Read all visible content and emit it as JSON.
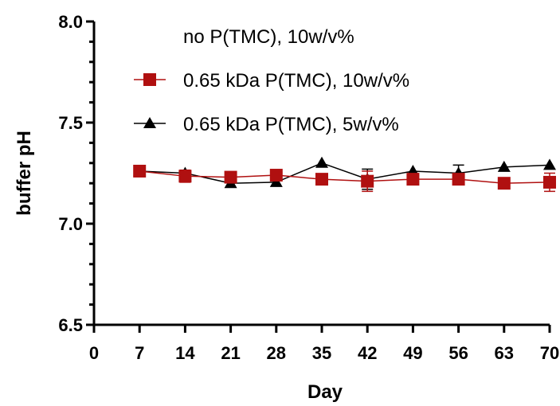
{
  "chart_data": {
    "type": "line",
    "xlabel": "Day",
    "ylabel": "buffer pH",
    "xlim": [
      0,
      70
    ],
    "ylim": [
      6.5,
      8.0
    ],
    "x_ticks": [
      "0",
      "7",
      "14",
      "21",
      "28",
      "35",
      "42",
      "49",
      "56",
      "63",
      "70"
    ],
    "y_ticks": [
      "6.5",
      "7.0",
      "7.5",
      "8.0"
    ],
    "grid": false,
    "legend_position": "top",
    "series": [
      {
        "name": "no P(TMC), 10w/v%",
        "marker": "none",
        "color": "#000000",
        "x": [],
        "y": []
      },
      {
        "name": "0.65 kDa P(TMC), 10w/v%",
        "marker": "square",
        "color": "#b01010",
        "x": [
          7,
          14,
          21,
          28,
          35,
          42,
          49,
          56,
          63,
          70
        ],
        "y": [
          7.26,
          7.235,
          7.23,
          7.24,
          7.22,
          7.21,
          7.22,
          7.22,
          7.2,
          7.205
        ],
        "error": [
          0.0,
          0.03,
          0.0,
          0.0,
          0.0,
          0.05,
          0.0,
          0.0,
          0.0,
          0.045
        ]
      },
      {
        "name": "0.65 kDa P(TMC), 5w/v%",
        "marker": "triangle",
        "color": "#000000",
        "x": [
          7,
          14,
          21,
          28,
          35,
          42,
          49,
          56,
          63,
          70
        ],
        "y": [
          7.26,
          7.25,
          7.2,
          7.205,
          7.3,
          7.22,
          7.26,
          7.25,
          7.28,
          7.29
        ],
        "error": [
          0.0,
          0.0,
          0.0,
          0.0,
          0.0,
          0.05,
          0.0,
          0.04,
          0.0,
          0.0
        ]
      }
    ]
  }
}
